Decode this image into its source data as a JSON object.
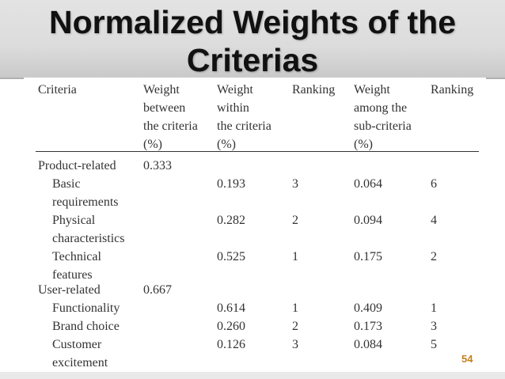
{
  "slide": {
    "title_line1": "Normalized Weights of the",
    "title_line2": "Criterias",
    "slide_number": "54"
  },
  "table": {
    "headers": [
      [
        "Criteria"
      ],
      [
        "Weight",
        "between",
        "the criteria",
        "(%)"
      ],
      [
        "Weight",
        "within",
        "the criteria",
        "(%)"
      ],
      [
        "Ranking"
      ],
      [
        "Weight",
        "among the",
        "sub-criteria",
        "(%)"
      ],
      [
        "Ranking"
      ]
    ],
    "rows": [
      {
        "criteria": [
          "Product-related"
        ],
        "between": "0.333",
        "within": "",
        "rank1": "",
        "among": "",
        "rank2": ""
      },
      {
        "criteria": [
          "Basic",
          "requirements"
        ],
        "between": "",
        "within": "0.193",
        "rank1": "3",
        "among": "0.064",
        "rank2": "6"
      },
      {
        "criteria": [
          "Physical",
          "characteristics"
        ],
        "between": "",
        "within": "0.282",
        "rank1": "2",
        "among": "0.094",
        "rank2": "4"
      },
      {
        "criteria": [
          "Technical",
          "features"
        ],
        "between": "",
        "within": "0.525",
        "rank1": "1",
        "among": "0.175",
        "rank2": "2"
      },
      {
        "criteria": [
          "User-related"
        ],
        "between": "0.667",
        "within": "",
        "rank1": "",
        "among": "",
        "rank2": ""
      },
      {
        "criteria": [
          "Functionality"
        ],
        "between": "",
        "within": "0.614",
        "rank1": "1",
        "among": "0.409",
        "rank2": "1"
      },
      {
        "criteria": [
          "Brand choice"
        ],
        "between": "",
        "within": "0.260",
        "rank1": "2",
        "among": "0.173",
        "rank2": "3"
      },
      {
        "criteria": [
          "Customer",
          "excitement"
        ],
        "between": "",
        "within": "0.126",
        "rank1": "3",
        "among": "0.084",
        "rank2": "5"
      }
    ]
  }
}
